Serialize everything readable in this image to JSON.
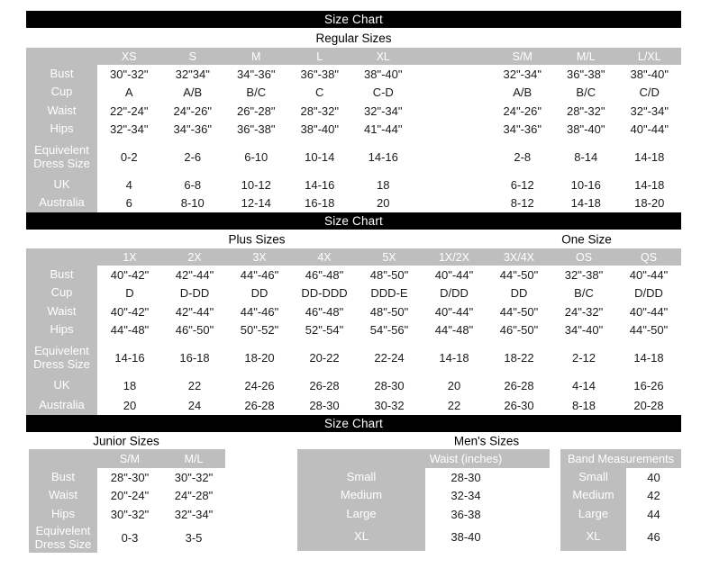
{
  "colors": {
    "gray": "#bebebe",
    "bar_bg": "#000000",
    "bar_text": "#ffffff"
  },
  "s1": {
    "bar_title": "Size Chart",
    "subtitle": "Regular Sizes",
    "col_headers": [
      "XS",
      "S",
      "M",
      "L",
      "XL",
      "",
      "S/M",
      "M/L",
      "L/XL"
    ],
    "rows": [
      {
        "label": "Bust",
        "values": [
          "30\"-32\"",
          "32\"34\"",
          "34\"-36\"",
          "36\"-38\"",
          "38\"-40\"",
          "",
          "32\"-34\"",
          "36\"-38\"",
          "38\"-40\""
        ]
      },
      {
        "label": "Cup",
        "values": [
          "A",
          "A/B",
          "B/C",
          "C",
          "C-D",
          "",
          "A/B",
          "B/C",
          "C/D"
        ]
      },
      {
        "label": "Waist",
        "values": [
          "22\"-24\"",
          "24\"-26\"",
          "26\"-28\"",
          "28\"-32\"",
          "32\"-34\"",
          "",
          "24\"-26\"",
          "28\"-32\"",
          "32\"-34\""
        ]
      },
      {
        "label": "Hips",
        "values": [
          "32\"-34\"",
          "34\"-36\"",
          "36\"-38\"",
          "38\"-40\"",
          "41\"-44\"",
          "",
          "34\"-36\"",
          "38\"-40\"",
          "40\"-44\""
        ]
      },
      {
        "label": "Equivelent Dress Size",
        "values": [
          "0-2",
          "2-6",
          "6-10",
          "10-14",
          "14-16",
          "",
          "2-8",
          "8-14",
          "14-18"
        ]
      },
      {
        "label": "UK",
        "values": [
          "4",
          "6-8",
          "10-12",
          "14-16",
          "18",
          "",
          "6-12",
          "10-16",
          "14-18"
        ]
      },
      {
        "label": "Australia",
        "values": [
          "6",
          "8-10",
          "12-14",
          "16-18",
          "20",
          "",
          "8-12",
          "14-18",
          "18-20"
        ]
      }
    ]
  },
  "s2": {
    "bar_title": "Size Chart",
    "subtitle_left": "Plus Sizes",
    "subtitle_right": "One Size",
    "col_headers": [
      "1X",
      "2X",
      "3X",
      "4X",
      "5X",
      "1X/2X",
      "3X/4X",
      "OS",
      "QS"
    ],
    "rows": [
      {
        "label": "Bust",
        "values": [
          "40\"-42\"",
          "42\"-44\"",
          "44\"-46\"",
          "46\"-48\"",
          "48\"-50\"",
          "40\"-44\"",
          "44\"-50\"",
          "32\"-38\"",
          "40\"-44\""
        ]
      },
      {
        "label": "Cup",
        "values": [
          "D",
          "D-DD",
          "DD",
          "DD-DDD",
          "DDD-E",
          "D/DD",
          "DD",
          "B/C",
          "D/DD"
        ]
      },
      {
        "label": "Waist",
        "values": [
          "40\"-42\"",
          "42\"-44\"",
          "44\"-46\"",
          "46\"-48\"",
          "48\"-50\"",
          "40\"-44\"",
          "44\"-50\"",
          "24\"-32\"",
          "40\"-44\""
        ]
      },
      {
        "label": "Hips",
        "values": [
          "44\"-48\"",
          "46\"-50\"",
          "50\"-52\"",
          "52\"-54\"",
          "54\"-56\"",
          "44\"-48\"",
          "46\"-50\"",
          "34\"-40\"",
          "44\"-50\""
        ]
      },
      {
        "label": "Equivelent Dress Size",
        "values": [
          "14-16",
          "16-18",
          "18-20",
          "20-22",
          "22-24",
          "14-18",
          "18-22",
          "2-12",
          "14-18"
        ]
      },
      {
        "label": "UK",
        "values": [
          "18",
          "22",
          "24-26",
          "26-28",
          "28-30",
          "20",
          "26-28",
          "4-14",
          "16-26"
        ]
      },
      {
        "label": "Australia",
        "values": [
          "20",
          "24",
          "26-28",
          "28-30",
          "30-32",
          "22",
          "26-30",
          "8-18",
          "20-28"
        ]
      }
    ]
  },
  "s3": {
    "bar_title": "Size Chart",
    "junior": {
      "title": "Junior Sizes",
      "col_headers": [
        "S/M",
        "M/L"
      ],
      "rows": [
        {
          "label": "Bust",
          "values": [
            "28\"-30\"",
            "30\"-32\""
          ]
        },
        {
          "label": "Waist",
          "values": [
            "20\"-24\"",
            "24\"-28\""
          ]
        },
        {
          "label": "Hips",
          "values": [
            "30\"-32\"",
            "32\"-34\""
          ]
        },
        {
          "label": "Equivelent Dress Size",
          "values": [
            "0-3",
            "3-5"
          ]
        }
      ]
    },
    "mens": {
      "title": "Men's Sizes",
      "waist_header": "Waist (inches)",
      "waist_rows": [
        {
          "label": "Small",
          "value": "28-30"
        },
        {
          "label": "Medium",
          "value": "32-34"
        },
        {
          "label": "Large",
          "value": "36-38"
        },
        {
          "label": "XL",
          "value": "38-40"
        }
      ],
      "band_header": "Band Measurements",
      "band_rows": [
        {
          "label": "Small",
          "value": "40"
        },
        {
          "label": "Medium",
          "value": "42"
        },
        {
          "label": "Large",
          "value": "44"
        },
        {
          "label": "XL",
          "value": "46"
        }
      ]
    }
  }
}
